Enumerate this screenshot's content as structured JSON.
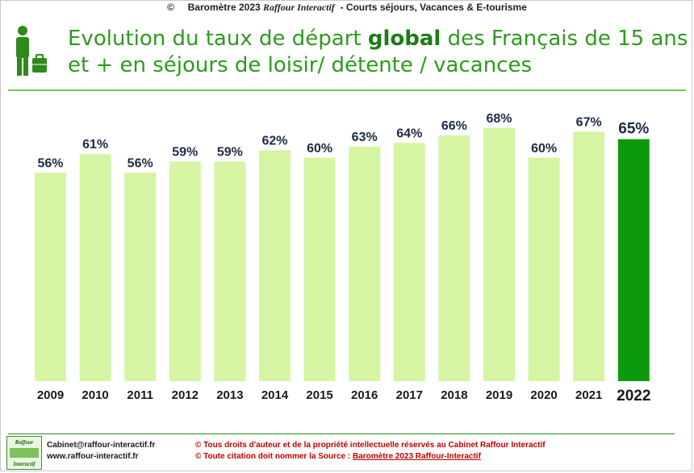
{
  "header": {
    "copyright_symbol": "©",
    "barometer": "Baromètre 2023",
    "brand": "Raffour Interactif",
    "subtitle": "-  Courts séjours, Vacances & E-tourisme"
  },
  "title": {
    "part1": "Evolution du taux de départ ",
    "bold": "global",
    "part2": " des Français de 15 ans et + en séjours de loisir/ détente / vacances"
  },
  "colors": {
    "bar": "#d5f5a3",
    "highlight_bar": "#0c9a0c",
    "title": "#2e9a1f",
    "label": "#1f2a44"
  },
  "icons": [
    "person-with-suitcase-icon"
  ],
  "chart_data": {
    "type": "bar",
    "categories": [
      "2009",
      "2010",
      "2011",
      "2012",
      "2013",
      "2014",
      "2015",
      "2016",
      "2017",
      "2018",
      "2019",
      "2020",
      "2021",
      "2022"
    ],
    "values": [
      56,
      61,
      56,
      59,
      59,
      62,
      60,
      63,
      64,
      66,
      68,
      60,
      67,
      65
    ],
    "data_labels": [
      "56%",
      "61%",
      "56%",
      "59%",
      "59%",
      "62%",
      "60%",
      "63%",
      "64%",
      "66%",
      "68%",
      "60%",
      "67%",
      "65%"
    ],
    "highlight_category": "2022",
    "unit": "%",
    "ylim": [
      0,
      75
    ],
    "grid": false,
    "legend": "none",
    "title": "",
    "xlabel": "",
    "ylabel": ""
  },
  "footer": {
    "logo_top": "Raffour",
    "logo_bottom": "Interactif",
    "email": "Cabinet@raffour-interactif.fr",
    "website": "www.raffour-interactif.fr",
    "rights_line1": "©  Tous droits d'auteur et de la propriété intellectuelle réservés au Cabinet Raffour Interactif",
    "rights_line2_prefix": "©  Toute citation doit nommer la Source : ",
    "rights_line2_source": "Baromètre 2023 Raffour-Interactif"
  }
}
